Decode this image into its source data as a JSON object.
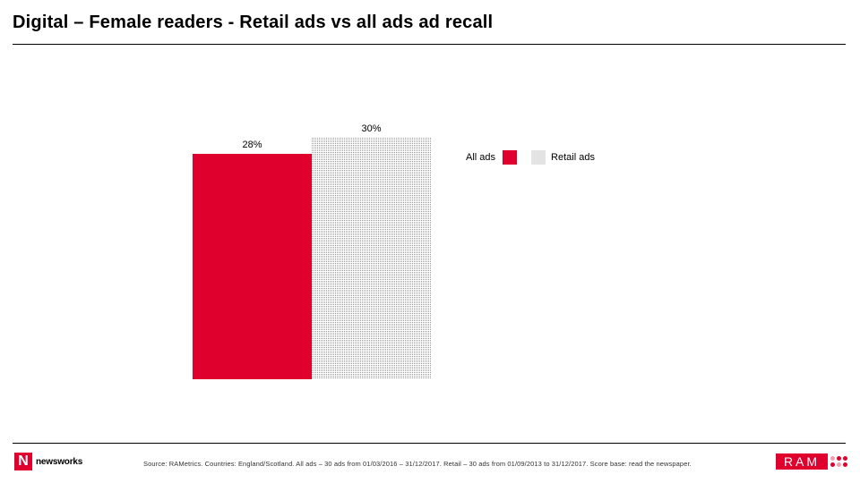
{
  "header": {
    "title": "Digital – Female readers - Retail ads vs all ads ad recall"
  },
  "chart_data": {
    "type": "bar",
    "categories": [
      "All ads",
      "Retail ads"
    ],
    "values": [
      28,
      30
    ],
    "data_labels": [
      "28%",
      "30%"
    ],
    "ylim": [
      0,
      34
    ],
    "grid": false,
    "legend_position": "right",
    "colors": {
      "All ads": "#e0002d",
      "Retail ads": "#9a9a9a"
    },
    "fills": {
      "All ads": "solid",
      "Retail ads": "dotted-pattern"
    }
  },
  "legend": {
    "items": [
      {
        "label": "All ads",
        "color": "#e0002d"
      },
      {
        "label": "Retail ads",
        "color": "#9a9a9a"
      }
    ]
  },
  "footer": {
    "left_logo_text": "newsworks",
    "left_logo_mark": "N",
    "source": "Source: RAMetrics. Countries: England/Scotland. All ads – 30 ads from 01/03/2016 – 31/12/2017. Retail – 30 ads from 01/09/2013 to 31/12/2017. Score base: read the newspaper.",
    "right_logo_text": "RAM"
  }
}
